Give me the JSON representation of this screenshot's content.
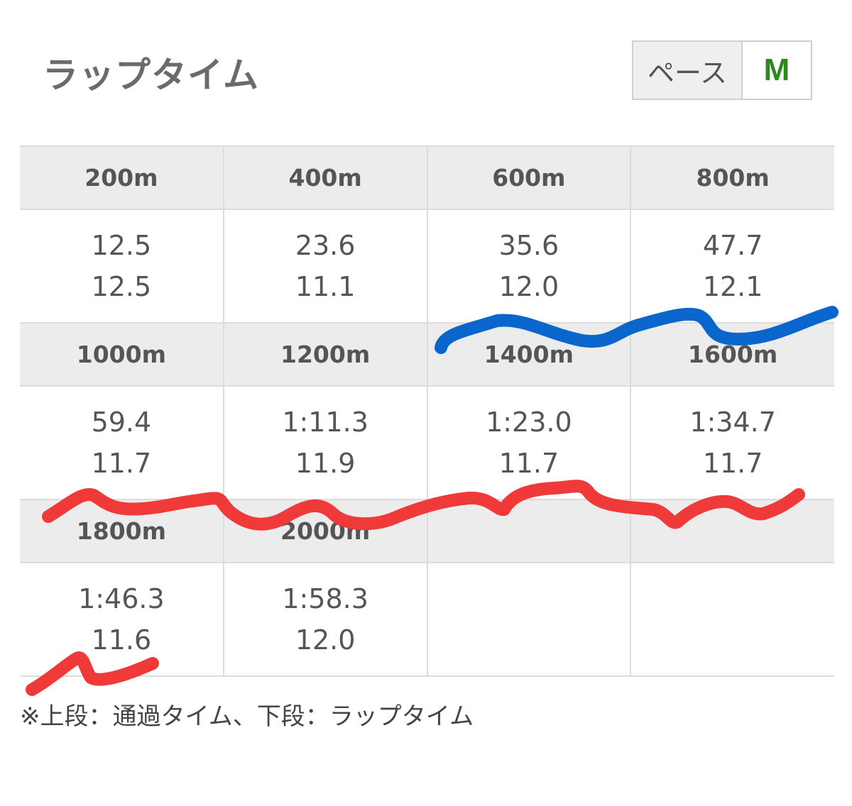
{
  "header": {
    "title": "ラップタイム",
    "pace_label": "ペース",
    "pace_value": "M"
  },
  "laps": [
    {
      "distance": "200m",
      "passing": "12.5",
      "lap": "12.5"
    },
    {
      "distance": "400m",
      "passing": "23.6",
      "lap": "11.1"
    },
    {
      "distance": "600m",
      "passing": "35.6",
      "lap": "12.0"
    },
    {
      "distance": "800m",
      "passing": "47.7",
      "lap": "12.1"
    },
    {
      "distance": "1000m",
      "passing": "59.4",
      "lap": "11.7"
    },
    {
      "distance": "1200m",
      "passing": "1:11.3",
      "lap": "11.9"
    },
    {
      "distance": "1400m",
      "passing": "1:23.0",
      "lap": "11.7"
    },
    {
      "distance": "1600m",
      "passing": "1:34.7",
      "lap": "11.7"
    },
    {
      "distance": "1800m",
      "passing": "1:46.3",
      "lap": "11.6"
    },
    {
      "distance": "2000m",
      "passing": "1:58.3",
      "lap": "12.0"
    }
  ],
  "note": "※上段：通過タイム、下段：ラップタイム",
  "annotations": {
    "blue_color": "#0a66cc",
    "red_color": "#f03a3a"
  }
}
